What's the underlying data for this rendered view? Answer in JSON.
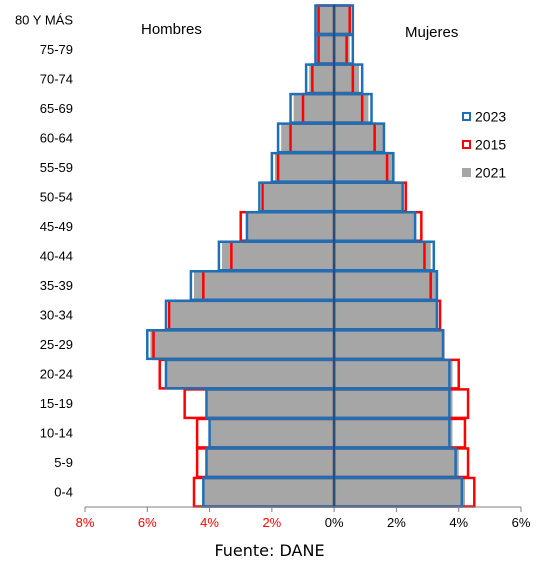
{
  "chart_data": {
    "type": "bar",
    "subtype": "population-pyramid",
    "title": "",
    "side_labels": {
      "left": "Hombres",
      "right": "Mujeres"
    },
    "categories": [
      "80 Y MÁS",
      "75-79",
      "70-74",
      "65-69",
      "60-64",
      "55-59",
      "50-54",
      "45-49",
      "40-44",
      "35-39",
      "30-34",
      "25-29",
      "20-24",
      "15-19",
      "10-14",
      "5-9",
      "0-4"
    ],
    "series": [
      {
        "name": "2021",
        "color": "#a6a6a6",
        "style": "filled",
        "men": [
          0.6,
          0.6,
          0.8,
          1.3,
          1.7,
          1.9,
          2.3,
          2.8,
          3.6,
          4.5,
          5.3,
          5.9,
          5.4,
          4.1,
          4.0,
          4.1,
          4.2
        ],
        "women": [
          0.5,
          0.5,
          0.8,
          1.1,
          1.6,
          1.9,
          2.2,
          2.6,
          3.1,
          3.3,
          3.3,
          3.5,
          3.8,
          3.8,
          3.8,
          4.0,
          4.2
        ]
      },
      {
        "name": "2015",
        "color": "#ff0000",
        "style": "outline",
        "men": [
          0.5,
          0.5,
          0.7,
          1.0,
          1.4,
          1.8,
          2.3,
          3.0,
          3.3,
          4.2,
          5.3,
          5.8,
          5.6,
          4.8,
          4.4,
          4.4,
          4.5
        ],
        "women": [
          0.5,
          0.4,
          0.6,
          0.9,
          1.3,
          1.7,
          2.3,
          2.8,
          2.9,
          3.1,
          3.4,
          3.5,
          4.0,
          4.3,
          4.2,
          4.3,
          4.5
        ]
      },
      {
        "name": "2023",
        "color": "#1f6fb5",
        "style": "outline",
        "men": [
          0.6,
          0.6,
          0.9,
          1.4,
          1.8,
          2.0,
          2.4,
          2.8,
          3.7,
          4.6,
          5.4,
          6.0,
          5.4,
          4.1,
          4.0,
          4.1,
          4.2
        ],
        "women": [
          0.6,
          0.6,
          0.9,
          1.2,
          1.6,
          1.9,
          2.2,
          2.6,
          3.2,
          3.3,
          3.3,
          3.5,
          3.7,
          3.7,
          3.7,
          3.9,
          4.1
        ]
      }
    ],
    "legend": [
      "2023",
      "2015",
      "2021"
    ],
    "legend_position": "right",
    "xlim": [
      -8,
      6
    ],
    "x_ticks": [
      {
        "value": -8,
        "label": "8%"
      },
      {
        "value": -6,
        "label": "6%"
      },
      {
        "value": -4,
        "label": "4%"
      },
      {
        "value": -2,
        "label": "2%"
      },
      {
        "value": 0,
        "label": "0%"
      },
      {
        "value": 2,
        "label": "2%"
      },
      {
        "value": 4,
        "label": "4%"
      },
      {
        "value": 6,
        "label": "6%"
      }
    ],
    "negative_tick_color": "#ff0000",
    "positive_tick_color": "#000000",
    "axis_color": "#1f4e79",
    "grid": false
  },
  "source": "Fuente: DANE"
}
